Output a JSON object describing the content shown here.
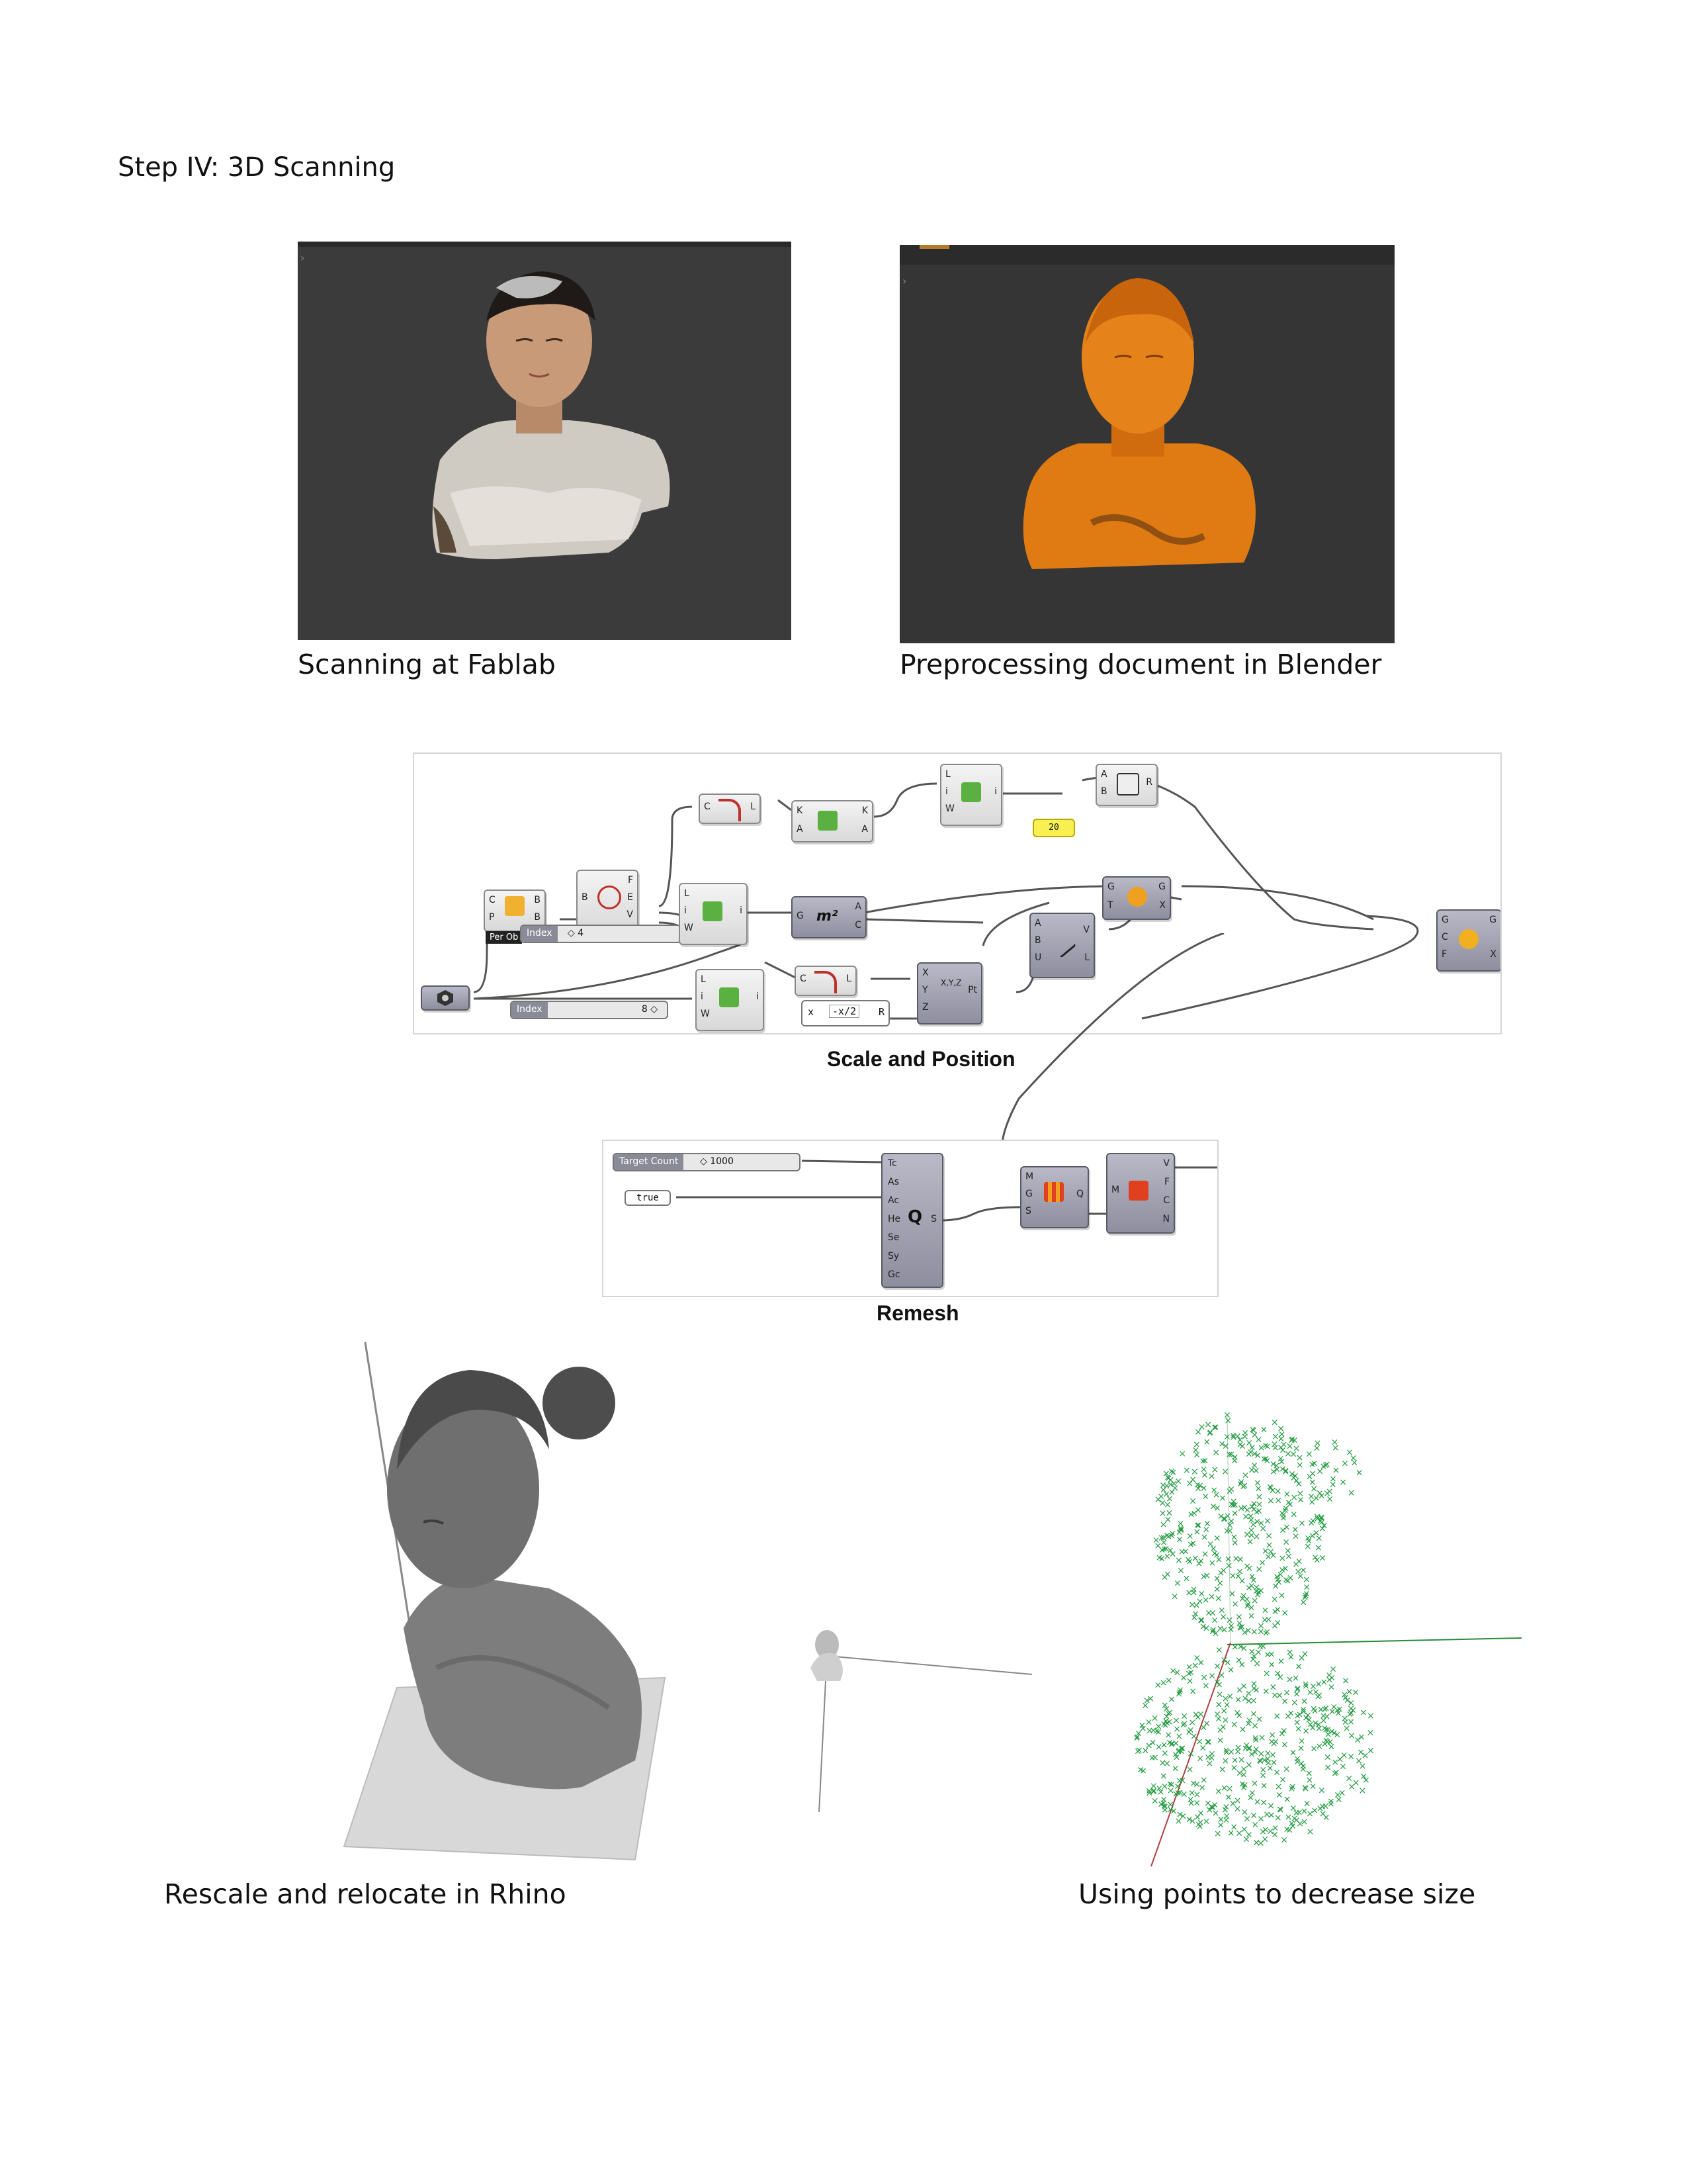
{
  "title": "Step IV: 3D Scanning",
  "captions": {
    "scan": "Scanning at Fablab",
    "blender": "Preprocessing document in Blender",
    "scale": "Scale and Position",
    "remesh": "Remesh",
    "rhino": "Rescale and relocate in Rhino",
    "points": "Using points to decrease size"
  },
  "grasshopper": {
    "slider_index_1": {
      "label": "Index",
      "value": "◇ 4"
    },
    "slider_index_2": {
      "label": "Index",
      "value": "8 ◇"
    },
    "panel_20": "20",
    "expr_input": "x",
    "expr": "-x/2",
    "expr_output": "R",
    "obj_tag": "Per Ob",
    "target_count": {
      "label": "Target Count",
      "value": "◇ 1000"
    },
    "bool_true": "true"
  },
  "colors": {
    "panel_bg": "#3a3a3a",
    "blender_orange": "#e07a12",
    "point_green": "#1e9a3c",
    "wire": "#555555"
  }
}
